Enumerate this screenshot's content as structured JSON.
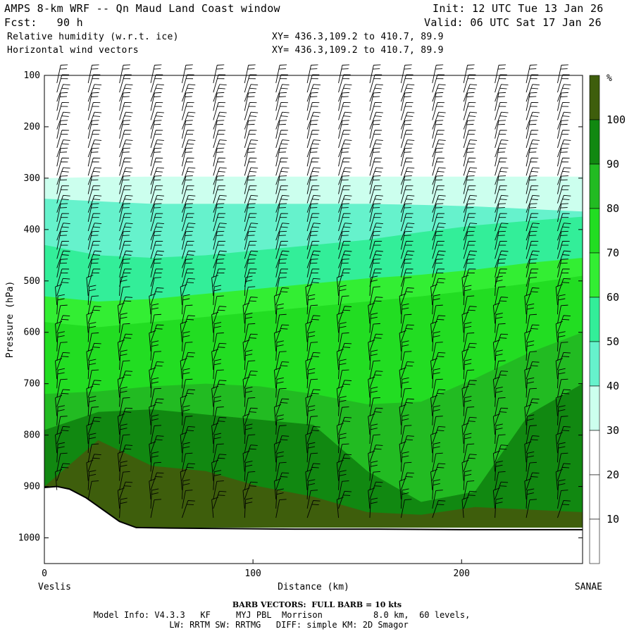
{
  "header": {
    "title": "AMPS 8-km WRF -- Qn Maud Land Coast window",
    "init": "Init: 12 UTC Tue 13 Jan 26",
    "fcst": "Fcst:   90 h",
    "valid": "Valid: 06 UTC Sat 17 Jan 26",
    "field1": "Relative humidity (w.r.t. ice)",
    "xy1": "XY= 436.3,109.2 to 410.7, 89.9",
    "field2": "Horizontal wind vectors",
    "xy2": "XY= 436.3,109.2 to 410.7, 89.9"
  },
  "footer": {
    "barb_note": "BARB VECTORS:  FULL BARB = 10 kts",
    "model_info": "Model Info: V4.3.3   KF     MYJ PBL  Morrison          8.0 km,  60 levels,",
    "model_info2": "LW: RRTM SW: RRTMG   DIFF: simple KM: 2D Smagor"
  },
  "chart_data": {
    "type": "heatmap",
    "title": "Relative humidity (w.r.t. ice)",
    "xlabel": "Distance (km)",
    "ylabel": "Pressure (hPa)",
    "x_left_label": "Veslis",
    "x_right_label": "SANAE",
    "xlim": [
      0,
      258
    ],
    "ylim": [
      100,
      1050
    ],
    "y_inverted": true,
    "x_ticks": [
      0,
      100,
      200
    ],
    "y_ticks": [
      100,
      200,
      300,
      400,
      500,
      600,
      700,
      800,
      900,
      1000
    ],
    "colorbar": {
      "unit": "%",
      "levels": [
        10,
        20,
        30,
        40,
        50,
        60,
        70,
        80,
        90,
        100
      ],
      "colors": [
        "#ffffff",
        "#ffffff",
        "#ffffff",
        "#ccffee",
        "#66f2cc",
        "#33ee99",
        "#33ee33",
        "#22dd22",
        "#22bb22",
        "#118811",
        "#3e5e0c"
      ]
    },
    "bands": [
      {
        "level_pct": 30,
        "top": [
          300,
          298,
          297,
          297,
          297,
          297,
          297,
          297,
          297,
          297,
          297
        ],
        "bot": [
          850,
          840,
          830,
          820,
          810,
          800,
          790,
          780,
          770,
          760,
          750
        ]
      },
      {
        "level_pct": 40,
        "top": [
          340,
          345,
          350,
          350,
          350,
          350,
          350,
          352,
          355,
          360,
          365
        ],
        "bot": [
          850,
          840,
          830,
          820,
          810,
          800,
          790,
          780,
          770,
          760,
          750
        ]
      },
      {
        "level_pct": 50,
        "top": [
          430,
          450,
          455,
          450,
          440,
          430,
          420,
          405,
          392,
          383,
          375
        ],
        "bot": [
          850,
          840,
          830,
          820,
          810,
          800,
          790,
          780,
          770,
          760,
          750
        ]
      },
      {
        "level_pct": 60,
        "top": [
          530,
          540,
          535,
          525,
          515,
          505,
          495,
          488,
          478,
          465,
          455
        ],
        "bot": [
          850,
          840,
          830,
          820,
          810,
          800,
          790,
          780,
          770,
          760,
          750
        ]
      },
      {
        "level_pct": 70,
        "top": [
          580,
          590,
          580,
          570,
          560,
          550,
          540,
          530,
          518,
          505,
          490
        ],
        "bot": [
          850,
          840,
          830,
          820,
          810,
          800,
          790,
          780,
          770,
          760,
          750
        ]
      },
      {
        "level_pct": 80,
        "top": [
          720,
          715,
          705,
          700,
          705,
          720,
          740,
          735,
          690,
          640,
          600
        ],
        "bot": [
          980,
          980,
          980,
          980,
          980,
          980,
          980,
          980,
          980,
          980,
          980
        ]
      },
      {
        "level_pct": 90,
        "top": [
          790,
          755,
          750,
          760,
          770,
          780,
          870,
          930,
          910,
          760,
          700
        ],
        "bot": [
          980,
          980,
          980,
          980,
          980,
          980,
          980,
          980,
          980,
          980,
          980
        ]
      },
      {
        "level_pct": 100,
        "top": [
          900,
          810,
          860,
          870,
          900,
          920,
          950,
          955,
          940,
          945,
          950
        ],
        "bot": [
          980,
          980,
          980,
          980,
          980,
          980,
          980,
          980,
          980,
          980,
          980
        ]
      }
    ],
    "terrain_hpa": [
      [
        0,
        902
      ],
      [
        6,
        900
      ],
      [
        12,
        905
      ],
      [
        20,
        922
      ],
      [
        28,
        945
      ],
      [
        36,
        968
      ],
      [
        44,
        980
      ],
      [
        60,
        981
      ],
      [
        90,
        982
      ],
      [
        120,
        983
      ],
      [
        160,
        983
      ],
      [
        200,
        984
      ],
      [
        258,
        984
      ]
    ],
    "wind_barb_columns_km": [
      6,
      21,
      36,
      51,
      66,
      81,
      96,
      111,
      126,
      141,
      156,
      171,
      186,
      201,
      216,
      231,
      246
    ]
  }
}
